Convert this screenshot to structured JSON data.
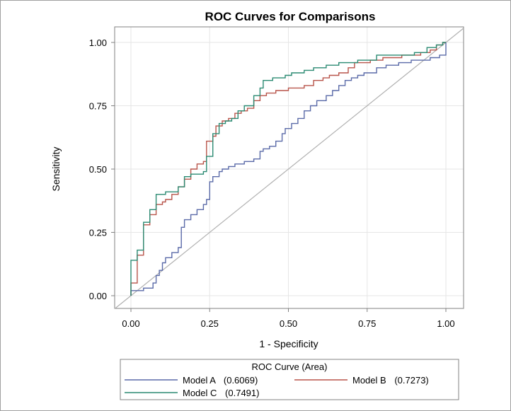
{
  "chart_data": {
    "type": "line",
    "title": "ROC Curves for Comparisons",
    "xlabel": "1 - Specificity",
    "ylabel": "Sensitivity",
    "xlim": [
      0,
      1
    ],
    "ylim": [
      0,
      1
    ],
    "x_ticks": [
      "0.00",
      "0.25",
      "0.50",
      "0.75",
      "1.00"
    ],
    "y_ticks": [
      "0.00",
      "0.25",
      "0.50",
      "0.75",
      "1.00"
    ],
    "grid": true,
    "reference_line": "diagonal",
    "legend": {
      "title": "ROC Curve (Area)",
      "placement": "bottom",
      "entries": [
        {
          "label": "Model A",
          "area": "(0.6069)"
        },
        {
          "label": "Model B",
          "area": "(0.7273)"
        },
        {
          "label": "Model C",
          "area": "(0.7491)"
        }
      ]
    },
    "series": [
      {
        "name": "Model A",
        "color": "#5a6aa8",
        "points": [
          [
            0,
            0
          ],
          [
            0,
            0.02
          ],
          [
            0.02,
            0.02
          ],
          [
            0.04,
            0.02
          ],
          [
            0.04,
            0.03
          ],
          [
            0.07,
            0.03
          ],
          [
            0.07,
            0.05
          ],
          [
            0.08,
            0.05
          ],
          [
            0.08,
            0.08
          ],
          [
            0.09,
            0.08
          ],
          [
            0.09,
            0.1
          ],
          [
            0.1,
            0.1
          ],
          [
            0.1,
            0.13
          ],
          [
            0.11,
            0.13
          ],
          [
            0.11,
            0.15
          ],
          [
            0.13,
            0.15
          ],
          [
            0.13,
            0.17
          ],
          [
            0.15,
            0.17
          ],
          [
            0.15,
            0.19
          ],
          [
            0.16,
            0.19
          ],
          [
            0.16,
            0.27
          ],
          [
            0.17,
            0.27
          ],
          [
            0.17,
            0.3
          ],
          [
            0.19,
            0.3
          ],
          [
            0.19,
            0.32
          ],
          [
            0.21,
            0.32
          ],
          [
            0.21,
            0.34
          ],
          [
            0.23,
            0.34
          ],
          [
            0.23,
            0.36
          ],
          [
            0.24,
            0.36
          ],
          [
            0.24,
            0.38
          ],
          [
            0.25,
            0.38
          ],
          [
            0.25,
            0.45
          ],
          [
            0.26,
            0.45
          ],
          [
            0.26,
            0.47
          ],
          [
            0.28,
            0.47
          ],
          [
            0.28,
            0.49
          ],
          [
            0.29,
            0.49
          ],
          [
            0.29,
            0.5
          ],
          [
            0.31,
            0.5
          ],
          [
            0.31,
            0.51
          ],
          [
            0.33,
            0.51
          ],
          [
            0.33,
            0.52
          ],
          [
            0.36,
            0.52
          ],
          [
            0.36,
            0.53
          ],
          [
            0.39,
            0.53
          ],
          [
            0.39,
            0.54
          ],
          [
            0.41,
            0.54
          ],
          [
            0.41,
            0.57
          ],
          [
            0.42,
            0.57
          ],
          [
            0.42,
            0.58
          ],
          [
            0.44,
            0.58
          ],
          [
            0.44,
            0.59
          ],
          [
            0.46,
            0.59
          ],
          [
            0.46,
            0.61
          ],
          [
            0.48,
            0.61
          ],
          [
            0.48,
            0.64
          ],
          [
            0.49,
            0.64
          ],
          [
            0.49,
            0.66
          ],
          [
            0.51,
            0.66
          ],
          [
            0.51,
            0.68
          ],
          [
            0.53,
            0.68
          ],
          [
            0.53,
            0.7
          ],
          [
            0.55,
            0.7
          ],
          [
            0.55,
            0.73
          ],
          [
            0.57,
            0.73
          ],
          [
            0.57,
            0.75
          ],
          [
            0.59,
            0.75
          ],
          [
            0.59,
            0.77
          ],
          [
            0.62,
            0.77
          ],
          [
            0.62,
            0.79
          ],
          [
            0.64,
            0.79
          ],
          [
            0.64,
            0.81
          ],
          [
            0.66,
            0.81
          ],
          [
            0.66,
            0.83
          ],
          [
            0.68,
            0.83
          ],
          [
            0.68,
            0.85
          ],
          [
            0.7,
            0.85
          ],
          [
            0.7,
            0.86
          ],
          [
            0.72,
            0.86
          ],
          [
            0.72,
            0.87
          ],
          [
            0.74,
            0.87
          ],
          [
            0.74,
            0.88
          ],
          [
            0.78,
            0.88
          ],
          [
            0.78,
            0.9
          ],
          [
            0.81,
            0.9
          ],
          [
            0.81,
            0.91
          ],
          [
            0.85,
            0.91
          ],
          [
            0.85,
            0.92
          ],
          [
            0.89,
            0.92
          ],
          [
            0.89,
            0.93
          ],
          [
            0.95,
            0.93
          ],
          [
            0.95,
            0.94
          ],
          [
            0.98,
            0.94
          ],
          [
            0.98,
            0.95
          ],
          [
            1,
            0.95
          ],
          [
            1,
            0.97
          ],
          [
            1,
            1
          ]
        ]
      },
      {
        "name": "Model B",
        "color": "#b8544a",
        "points": [
          [
            0,
            0
          ],
          [
            0,
            0.05
          ],
          [
            0.02,
            0.05
          ],
          [
            0.02,
            0.16
          ],
          [
            0.04,
            0.16
          ],
          [
            0.04,
            0.28
          ],
          [
            0.06,
            0.28
          ],
          [
            0.06,
            0.32
          ],
          [
            0.08,
            0.32
          ],
          [
            0.08,
            0.36
          ],
          [
            0.1,
            0.36
          ],
          [
            0.1,
            0.37
          ],
          [
            0.11,
            0.37
          ],
          [
            0.11,
            0.38
          ],
          [
            0.13,
            0.38
          ],
          [
            0.13,
            0.4
          ],
          [
            0.15,
            0.4
          ],
          [
            0.15,
            0.43
          ],
          [
            0.17,
            0.43
          ],
          [
            0.17,
            0.46
          ],
          [
            0.19,
            0.46
          ],
          [
            0.19,
            0.5
          ],
          [
            0.21,
            0.5
          ],
          [
            0.21,
            0.52
          ],
          [
            0.23,
            0.52
          ],
          [
            0.23,
            0.53
          ],
          [
            0.24,
            0.53
          ],
          [
            0.24,
            0.61
          ],
          [
            0.26,
            0.61
          ],
          [
            0.26,
            0.63
          ],
          [
            0.27,
            0.63
          ],
          [
            0.27,
            0.67
          ],
          [
            0.29,
            0.67
          ],
          [
            0.29,
            0.69
          ],
          [
            0.31,
            0.69
          ],
          [
            0.31,
            0.7
          ],
          [
            0.33,
            0.7
          ],
          [
            0.33,
            0.72
          ],
          [
            0.35,
            0.72
          ],
          [
            0.35,
            0.73
          ],
          [
            0.37,
            0.73
          ],
          [
            0.37,
            0.74
          ],
          [
            0.39,
            0.74
          ],
          [
            0.39,
            0.77
          ],
          [
            0.41,
            0.77
          ],
          [
            0.41,
            0.79
          ],
          [
            0.43,
            0.79
          ],
          [
            0.43,
            0.8
          ],
          [
            0.46,
            0.8
          ],
          [
            0.46,
            0.81
          ],
          [
            0.5,
            0.81
          ],
          [
            0.5,
            0.82
          ],
          [
            0.55,
            0.82
          ],
          [
            0.55,
            0.83
          ],
          [
            0.58,
            0.83
          ],
          [
            0.58,
            0.85
          ],
          [
            0.61,
            0.85
          ],
          [
            0.61,
            0.86
          ],
          [
            0.63,
            0.86
          ],
          [
            0.63,
            0.87
          ],
          [
            0.66,
            0.87
          ],
          [
            0.66,
            0.88
          ],
          [
            0.69,
            0.88
          ],
          [
            0.69,
            0.9
          ],
          [
            0.71,
            0.9
          ],
          [
            0.71,
            0.92
          ],
          [
            0.76,
            0.92
          ],
          [
            0.76,
            0.93
          ],
          [
            0.8,
            0.93
          ],
          [
            0.8,
            0.94
          ],
          [
            0.86,
            0.94
          ],
          [
            0.86,
            0.95
          ],
          [
            0.92,
            0.95
          ],
          [
            0.92,
            0.96
          ],
          [
            0.95,
            0.96
          ],
          [
            0.95,
            0.97
          ],
          [
            0.97,
            0.97
          ],
          [
            0.97,
            0.99
          ],
          [
            0.99,
            0.99
          ],
          [
            0.99,
            1
          ],
          [
            1,
            1
          ]
        ]
      },
      {
        "name": "Model C",
        "color": "#2a8a72",
        "points": [
          [
            0,
            0
          ],
          [
            0,
            0.02
          ],
          [
            0,
            0.14
          ],
          [
            0.02,
            0.14
          ],
          [
            0.02,
            0.18
          ],
          [
            0.04,
            0.18
          ],
          [
            0.04,
            0.29
          ],
          [
            0.06,
            0.29
          ],
          [
            0.06,
            0.34
          ],
          [
            0.08,
            0.34
          ],
          [
            0.08,
            0.4
          ],
          [
            0.11,
            0.4
          ],
          [
            0.11,
            0.41
          ],
          [
            0.15,
            0.41
          ],
          [
            0.15,
            0.43
          ],
          [
            0.17,
            0.43
          ],
          [
            0.17,
            0.47
          ],
          [
            0.19,
            0.47
          ],
          [
            0.19,
            0.48
          ],
          [
            0.23,
            0.48
          ],
          [
            0.23,
            0.49
          ],
          [
            0.24,
            0.49
          ],
          [
            0.24,
            0.55
          ],
          [
            0.26,
            0.55
          ],
          [
            0.26,
            0.64
          ],
          [
            0.28,
            0.64
          ],
          [
            0.28,
            0.68
          ],
          [
            0.3,
            0.68
          ],
          [
            0.3,
            0.69
          ],
          [
            0.32,
            0.69
          ],
          [
            0.32,
            0.7
          ],
          [
            0.34,
            0.7
          ],
          [
            0.34,
            0.73
          ],
          [
            0.36,
            0.73
          ],
          [
            0.36,
            0.75
          ],
          [
            0.39,
            0.75
          ],
          [
            0.39,
            0.79
          ],
          [
            0.41,
            0.79
          ],
          [
            0.41,
            0.82
          ],
          [
            0.42,
            0.82
          ],
          [
            0.42,
            0.85
          ],
          [
            0.45,
            0.85
          ],
          [
            0.45,
            0.86
          ],
          [
            0.49,
            0.86
          ],
          [
            0.49,
            0.87
          ],
          [
            0.51,
            0.87
          ],
          [
            0.51,
            0.88
          ],
          [
            0.55,
            0.88
          ],
          [
            0.55,
            0.89
          ],
          [
            0.58,
            0.89
          ],
          [
            0.58,
            0.9
          ],
          [
            0.62,
            0.9
          ],
          [
            0.62,
            0.91
          ],
          [
            0.66,
            0.91
          ],
          [
            0.66,
            0.92
          ],
          [
            0.72,
            0.92
          ],
          [
            0.72,
            0.93
          ],
          [
            0.78,
            0.93
          ],
          [
            0.78,
            0.95
          ],
          [
            0.9,
            0.95
          ],
          [
            0.9,
            0.96
          ],
          [
            0.94,
            0.96
          ],
          [
            0.94,
            0.98
          ],
          [
            0.97,
            0.98
          ],
          [
            0.97,
            0.99
          ],
          [
            0.99,
            0.99
          ],
          [
            0.99,
            1
          ],
          [
            1,
            1
          ]
        ]
      }
    ]
  }
}
